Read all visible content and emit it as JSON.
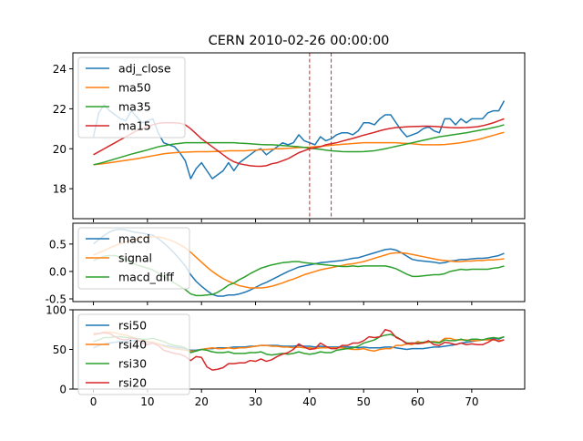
{
  "chart_data": {
    "title": "CERN 2010-02-26 00:00:00",
    "type": "line",
    "x_ticks": [
      0,
      10,
      20,
      30,
      40,
      50,
      60,
      70
    ],
    "xlim": [
      -3.8,
      79.8
    ],
    "vlines": [
      40,
      44
    ],
    "vline_color": "#d62728",
    "panels": [
      {
        "id": "price",
        "ylim": [
          16.5,
          24.8
        ],
        "y_ticks": [
          18,
          20,
          22,
          24
        ],
        "legend_position": "top-left",
        "series": [
          {
            "name": "adj_close",
            "color": "#1f77b4",
            "values": [
              20.6,
              21.8,
              22.2,
              21.9,
              21.7,
              21.5,
              21.4,
              21.9,
              21.6,
              21.3,
              21.4,
              21.5,
              20.8,
              20.3,
              20.2,
              20.1,
              19.8,
              19.4,
              18.5,
              19.0,
              19.3,
              18.9,
              18.5,
              18.7,
              18.9,
              19.3,
              18.9,
              19.3,
              19.5,
              19.7,
              19.9,
              20.0,
              19.7,
              19.9,
              20.1,
              20.3,
              20.2,
              20.3,
              20.7,
              20.4,
              20.3,
              20.2,
              20.6,
              20.4,
              20.5,
              20.7,
              20.8,
              20.8,
              20.7,
              20.9,
              21.3,
              21.3,
              21.2,
              21.5,
              21.7,
              21.7,
              21.3,
              20.9,
              20.6,
              20.7,
              20.8,
              21.0,
              21.1,
              20.9,
              20.8,
              21.5,
              21.5,
              21.2,
              21.5,
              21.3,
              21.5,
              21.5,
              21.5,
              21.8,
              21.9,
              21.9,
              22.4
            ]
          },
          {
            "name": "ma50",
            "color": "#ff7f0e",
            "values": [
              19.2,
              19.23,
              19.26,
              19.3,
              19.34,
              19.38,
              19.42,
              19.46,
              19.5,
              19.55,
              19.6,
              19.65,
              19.7,
              19.75,
              19.78,
              19.8,
              19.82,
              19.83,
              19.84,
              19.85,
              19.85,
              19.85,
              19.86,
              19.87,
              19.88,
              19.9,
              19.9,
              19.9,
              19.9,
              19.92,
              19.93,
              19.95,
              19.96,
              19.98,
              20.0,
              20.0,
              20.02,
              20.04,
              20.06,
              20.07,
              20.08,
              20.1,
              20.12,
              20.15,
              20.17,
              20.2,
              20.22,
              20.24,
              20.26,
              20.28,
              20.3,
              20.3,
              20.3,
              20.3,
              20.3,
              20.3,
              20.3,
              20.28,
              20.27,
              20.25,
              20.22,
              20.2,
              20.2,
              20.2,
              20.2,
              20.21,
              20.24,
              20.27,
              20.3,
              20.35,
              20.4,
              20.45,
              20.52,
              20.6,
              20.67,
              20.75,
              20.82
            ]
          },
          {
            "name": "ma35",
            "color": "#2ca02c",
            "values": [
              19.2,
              19.26,
              19.33,
              19.41,
              19.49,
              19.57,
              19.65,
              19.73,
              19.8,
              19.87,
              19.94,
              20.02,
              20.1,
              20.15,
              20.2,
              20.24,
              20.27,
              20.3,
              20.3,
              20.3,
              20.3,
              20.3,
              20.3,
              20.3,
              20.3,
              20.3,
              20.3,
              20.28,
              20.27,
              20.25,
              20.23,
              20.21,
              20.2,
              20.2,
              20.18,
              20.16,
              20.14,
              20.12,
              20.1,
              20.07,
              20.03,
              20.0,
              19.97,
              19.93,
              19.9,
              19.88,
              19.86,
              19.85,
              19.85,
              19.85,
              19.86,
              19.88,
              19.9,
              19.95,
              20.0,
              20.06,
              20.12,
              20.18,
              20.24,
              20.3,
              20.36,
              20.42,
              20.48,
              20.54,
              20.6,
              20.64,
              20.68,
              20.72,
              20.76,
              20.8,
              20.85,
              20.9,
              20.95,
              21.0,
              21.06,
              21.12,
              21.2
            ]
          },
          {
            "name": "ma15",
            "color": "#d62728",
            "values": [
              19.7,
              19.85,
              20.0,
              20.15,
              20.3,
              20.45,
              20.6,
              20.75,
              20.9,
              21.0,
              21.1,
              21.2,
              21.27,
              21.3,
              21.3,
              21.3,
              21.28,
              21.2,
              21.0,
              20.75,
              20.5,
              20.3,
              20.1,
              19.9,
              19.7,
              19.5,
              19.35,
              19.25,
              19.2,
              19.15,
              19.13,
              19.12,
              19.15,
              19.25,
              19.3,
              19.4,
              19.5,
              19.65,
              19.8,
              19.9,
              20.0,
              20.05,
              20.1,
              20.2,
              20.25,
              20.3,
              20.38,
              20.45,
              20.52,
              20.6,
              20.68,
              20.75,
              20.82,
              20.9,
              20.97,
              21.02,
              21.06,
              21.08,
              21.1,
              21.11,
              21.12,
              21.13,
              21.13,
              21.12,
              21.1,
              21.08,
              21.06,
              21.05,
              21.05,
              21.06,
              21.08,
              21.1,
              21.15,
              21.22,
              21.3,
              21.4,
              21.5
            ]
          }
        ]
      },
      {
        "id": "macd",
        "ylim": [
          -0.55,
          0.88
        ],
        "y_ticks": [
          -0.5,
          0.0,
          0.5
        ],
        "legend_position": "top-left",
        "series": [
          {
            "name": "macd",
            "color": "#1f77b4",
            "values": [
              0.5,
              0.58,
              0.66,
              0.72,
              0.76,
              0.77,
              0.76,
              0.73,
              0.71,
              0.7,
              0.68,
              0.66,
              0.6,
              0.52,
              0.43,
              0.33,
              0.22,
              0.1,
              -0.06,
              -0.18,
              -0.27,
              -0.35,
              -0.42,
              -0.45,
              -0.45,
              -0.43,
              -0.43,
              -0.41,
              -0.38,
              -0.34,
              -0.29,
              -0.24,
              -0.2,
              -0.15,
              -0.1,
              -0.05,
              0.0,
              0.04,
              0.08,
              0.1,
              0.12,
              0.14,
              0.16,
              0.17,
              0.18,
              0.19,
              0.2,
              0.22,
              0.24,
              0.25,
              0.28,
              0.31,
              0.34,
              0.37,
              0.4,
              0.41,
              0.39,
              0.34,
              0.28,
              0.22,
              0.2,
              0.19,
              0.18,
              0.17,
              0.15,
              0.16,
              0.19,
              0.2,
              0.22,
              0.22,
              0.23,
              0.24,
              0.24,
              0.25,
              0.27,
              0.29,
              0.33
            ]
          },
          {
            "name": "signal",
            "color": "#ff7f0e",
            "values": [
              0.3,
              0.34,
              0.38,
              0.43,
              0.47,
              0.51,
              0.54,
              0.57,
              0.59,
              0.61,
              0.62,
              0.63,
              0.63,
              0.61,
              0.58,
              0.54,
              0.49,
              0.43,
              0.35,
              0.26,
              0.17,
              0.08,
              0.0,
              -0.07,
              -0.13,
              -0.18,
              -0.22,
              -0.26,
              -0.28,
              -0.3,
              -0.3,
              -0.3,
              -0.29,
              -0.27,
              -0.24,
              -0.21,
              -0.17,
              -0.14,
              -0.1,
              -0.06,
              -0.03,
              0.0,
              0.03,
              0.05,
              0.07,
              0.09,
              0.11,
              0.13,
              0.14,
              0.16,
              0.18,
              0.21,
              0.24,
              0.27,
              0.3,
              0.33,
              0.34,
              0.34,
              0.33,
              0.31,
              0.29,
              0.27,
              0.25,
              0.23,
              0.21,
              0.2,
              0.19,
              0.18,
              0.18,
              0.19,
              0.19,
              0.2,
              0.2,
              0.21,
              0.21,
              0.22,
              0.23
            ]
          },
          {
            "name": "macd_diff",
            "color": "#2ca02c",
            "values": [
              0.2,
              0.24,
              0.28,
              0.29,
              0.29,
              0.26,
              0.22,
              0.16,
              0.12,
              0.09,
              0.06,
              0.03,
              -0.03,
              -0.09,
              -0.15,
              -0.21,
              -0.27,
              -0.33,
              -0.41,
              -0.44,
              -0.44,
              -0.43,
              -0.42,
              -0.38,
              -0.32,
              -0.25,
              -0.21,
              -0.15,
              -0.1,
              -0.04,
              0.01,
              0.06,
              0.09,
              0.12,
              0.14,
              0.16,
              0.17,
              0.18,
              0.18,
              0.16,
              0.15,
              0.14,
              0.13,
              0.12,
              0.11,
              0.1,
              0.09,
              0.09,
              0.1,
              0.09,
              0.1,
              0.1,
              0.1,
              0.1,
              0.1,
              0.08,
              0.05,
              0.0,
              -0.05,
              -0.09,
              -0.09,
              -0.08,
              -0.07,
              -0.06,
              -0.06,
              -0.04,
              0.0,
              0.02,
              0.04,
              0.03,
              0.04,
              0.04,
              0.04,
              0.04,
              0.06,
              0.07,
              0.1
            ]
          }
        ]
      },
      {
        "id": "rsi",
        "ylim": [
          0,
          100
        ],
        "y_ticks": [
          0,
          50,
          100
        ],
        "legend_position": "top-left",
        "series": [
          {
            "name": "rsi50",
            "color": "#1f77b4",
            "values": [
              52,
              55,
              57,
              58,
              59,
              60,
              60,
              61,
              61,
              60,
              59,
              59,
              57,
              55,
              54,
              53,
              52,
              51,
              49,
              49,
              50,
              51,
              51,
              52,
              52,
              52,
              53,
              53,
              53,
              54,
              54,
              55,
              55,
              55,
              55,
              54,
              54,
              54,
              55,
              54,
              54,
              53,
              54,
              53,
              53,
              53,
              53,
              53,
              53,
              52,
              53,
              52,
              52,
              52,
              53,
              53,
              52,
              51,
              50,
              51,
              51,
              51,
              52,
              53,
              53,
              54,
              55,
              56,
              58,
              59,
              60,
              61,
              62,
              63,
              64,
              63,
              66
            ]
          },
          {
            "name": "rsi40",
            "color": "#ff7f0e",
            "values": [
              68,
              70,
              72,
              72,
              71,
              69,
              68,
              66,
              64,
              62,
              60,
              59,
              57,
              54,
              52,
              51,
              50,
              49,
              48,
              48,
              50,
              51,
              52,
              51,
              51,
              52,
              51,
              52,
              52,
              53,
              54,
              55,
              55,
              54,
              54,
              53,
              53,
              52,
              53,
              52,
              52,
              51,
              52,
              52,
              52,
              52,
              52,
              51,
              50,
              50,
              51,
              49,
              48,
              50,
              51,
              51,
              55,
              55,
              57,
              56,
              60,
              58,
              59,
              60,
              59,
              64,
              64,
              62,
              62,
              62,
              61,
              61,
              62,
              62,
              62,
              61,
              62
            ]
          },
          {
            "name": "rsi30",
            "color": "#2ca02c",
            "values": [
              60,
              62,
              65,
              65,
              66,
              66,
              65,
              65,
              64,
              63,
              63,
              64,
              62,
              60,
              57,
              55,
              54,
              52,
              46,
              48,
              50,
              49,
              47,
              46,
              46,
              47,
              45,
              45,
              45,
              46,
              46,
              47,
              44,
              43,
              44,
              45,
              44,
              45,
              47,
              45,
              44,
              45,
              47,
              46,
              46,
              49,
              50,
              51,
              52,
              54,
              58,
              60,
              62,
              66,
              68,
              69,
              66,
              62,
              58,
              58,
              58,
              59,
              60,
              59,
              58,
              62,
              61,
              61,
              63,
              61,
              63,
              63,
              62,
              64,
              65,
              64,
              66
            ]
          },
          {
            "name": "rsi20",
            "color": "#d62728",
            "values": [
              70,
              70,
              71,
              70,
              66,
              63,
              62,
              64,
              63,
              58,
              56,
              58,
              55,
              49,
              47,
              45,
              44,
              41,
              36,
              41,
              40,
              28,
              24,
              25,
              27,
              32,
              32,
              33,
              33,
              36,
              35,
              38,
              35,
              37,
              41,
              44,
              46,
              50,
              57,
              53,
              50,
              51,
              58,
              54,
              51,
              51,
              55,
              55,
              58,
              58,
              61,
              66,
              65,
              66,
              75,
              73,
              65,
              62,
              57,
              58,
              57,
              58,
              61,
              56,
              55,
              59,
              58,
              56,
              58,
              56,
              57,
              56,
              56,
              59,
              63,
              60,
              62
            ]
          }
        ]
      }
    ]
  }
}
